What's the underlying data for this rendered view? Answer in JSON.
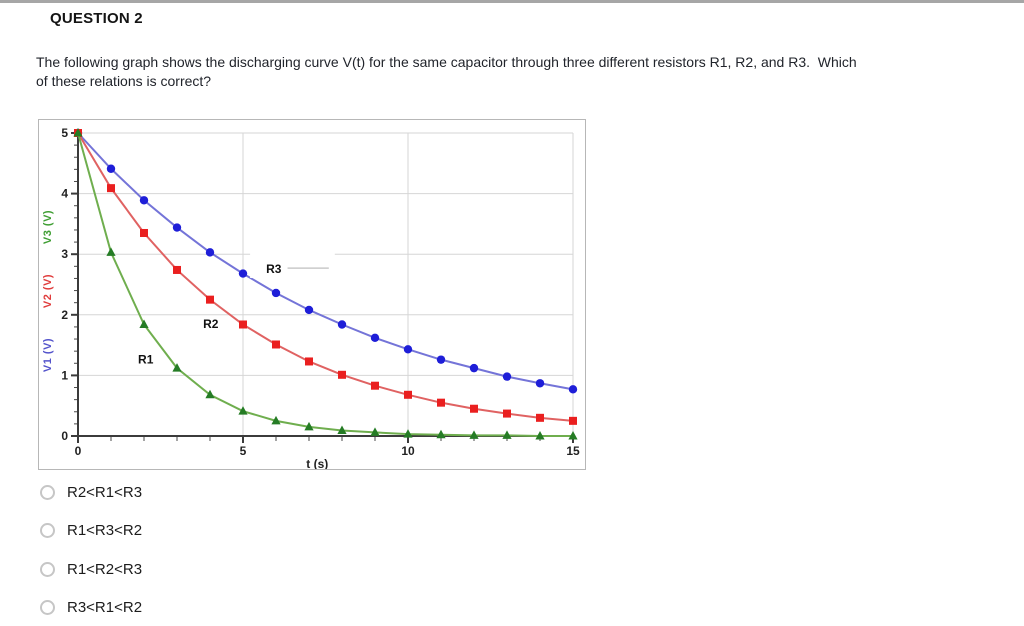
{
  "header": {
    "title": "QUESTION 2"
  },
  "question": {
    "line1": "The following graph shows the discharging curve V(t) for the same capacitor through three different resistors R1, R2, and R3.  Which",
    "line2": "of these relations is correct?"
  },
  "chart_data": {
    "type": "line",
    "title": "",
    "xlabel": "t (s)",
    "ylabels": [
      {
        "text": "V1 (V)",
        "color": "#5353cb"
      },
      {
        "text": "V2 (V)",
        "color": "#e03c3c"
      },
      {
        "text": "V3 (V)",
        "color": "#3f9e33"
      }
    ],
    "xlim": [
      0,
      15
    ],
    "ylim": [
      0,
      5
    ],
    "x_major_ticks": [
      0,
      5,
      10,
      15
    ],
    "x_minor_step": 1,
    "y_major_ticks": [
      0,
      1,
      2,
      3,
      4,
      5
    ],
    "y_minor_step": 0.2,
    "grid_h": [
      1,
      2,
      3,
      4,
      5
    ],
    "grid_v": [
      5,
      10,
      15
    ],
    "x": [
      0,
      1,
      2,
      3,
      4,
      5,
      6,
      7,
      8,
      9,
      10,
      11,
      12,
      13,
      14,
      15
    ],
    "series": [
      {
        "name": "V1",
        "resistor_label": "R3",
        "marker": "circle",
        "line_color": "#7474d8",
        "marker_color": "#1e1ed8",
        "values": [
          5.0,
          4.41,
          3.89,
          3.44,
          3.03,
          2.68,
          2.36,
          2.08,
          1.84,
          1.62,
          1.43,
          1.26,
          1.12,
          0.98,
          0.87,
          0.77
        ]
      },
      {
        "name": "V2",
        "resistor_label": "R2",
        "marker": "square",
        "line_color": "#e06262",
        "marker_color": "#ea1f1f",
        "values": [
          5.0,
          4.09,
          3.35,
          2.74,
          2.25,
          1.84,
          1.51,
          1.23,
          1.01,
          0.83,
          0.68,
          0.55,
          0.45,
          0.37,
          0.3,
          0.25
        ]
      },
      {
        "name": "V3",
        "resistor_label": "R1",
        "marker": "triangle",
        "line_color": "#6fae4e",
        "marker_color": "#257c25",
        "values": [
          5.0,
          3.03,
          1.84,
          1.12,
          0.68,
          0.41,
          0.25,
          0.15,
          0.09,
          0.06,
          0.03,
          0.02,
          0.01,
          0.01,
          0.0,
          0.0
        ]
      }
    ],
    "annotations": [
      {
        "text": "R1",
        "t": 1.82,
        "v": 1.2
      },
      {
        "text": "R2",
        "t": 3.79,
        "v": 1.78
      },
      {
        "text": "R3",
        "t": 5.7,
        "v": 2.69,
        "leader_line": {
          "t1": 6.35,
          "t2": 7.6,
          "v": 2.77
        }
      }
    ],
    "grid_color": "#d6d6d6",
    "axis_color": "#3b3b3b"
  },
  "options": [
    {
      "label": "R2<R1<R3",
      "selected": false
    },
    {
      "label": "R1<R3<R2",
      "selected": false
    },
    {
      "label": "R1<R2<R3",
      "selected": false
    },
    {
      "label": "R3<R1<R2",
      "selected": false
    }
  ]
}
